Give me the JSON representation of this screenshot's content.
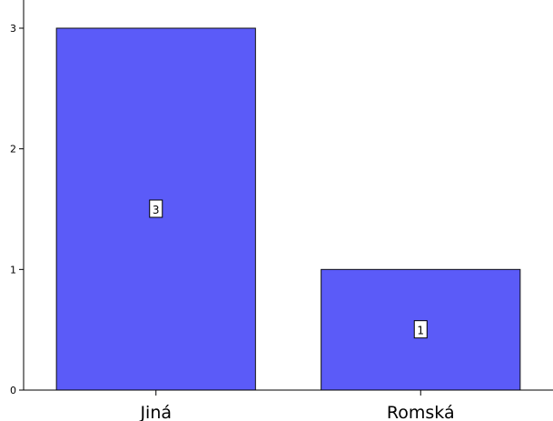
{
  "chart_data": {
    "type": "bar",
    "title": "",
    "categories": [
      "Jiná",
      "Romská"
    ],
    "values": [
      3,
      1
    ],
    "data_labels": [
      "3",
      "1"
    ],
    "y_ticks": [
      "0",
      "1",
      "2",
      "3"
    ],
    "ylim": [
      0,
      3.0
    ],
    "xlabel": "",
    "ylabel": "",
    "grid": false,
    "bar_color": "#5b5bf8",
    "bar_edge_color": "#111111"
  }
}
